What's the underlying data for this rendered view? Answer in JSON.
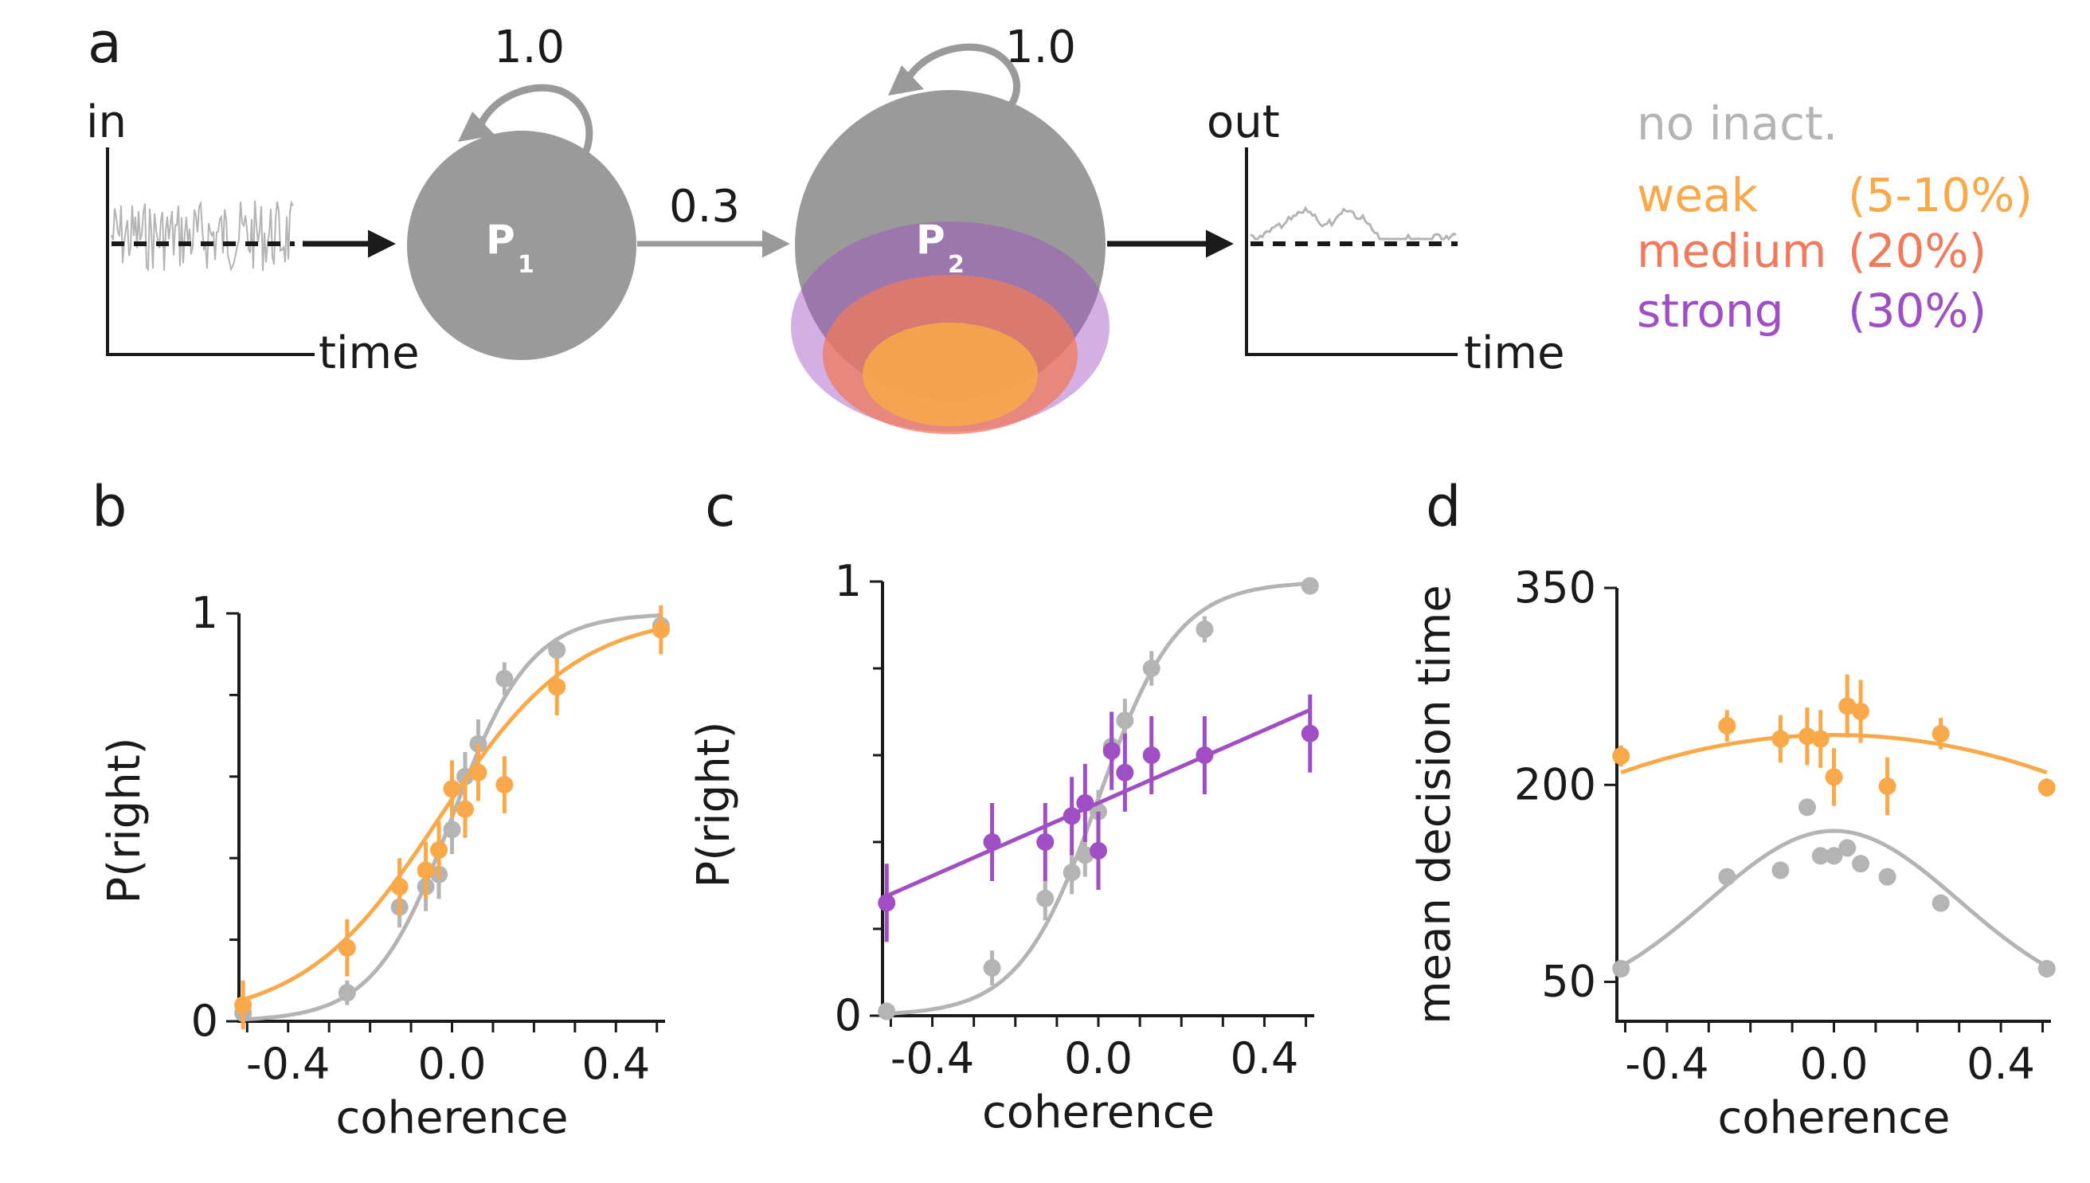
{
  "colors": {
    "none": "#b4b4b4",
    "weak": "#f9a94a",
    "medium": "#ef7a5c",
    "strong": "#a04ec4",
    "node": "#9a9a9a",
    "axis": "#1a1a1a"
  },
  "panel_a": {
    "letter": "a",
    "in_label": "in",
    "out_label": "out",
    "time_label_left": "time",
    "time_label_right": "time",
    "node1": {
      "label": "P",
      "sub": "1",
      "self_weight": "1.0"
    },
    "node2": {
      "label": "P",
      "sub": "2",
      "self_weight": "1.0"
    },
    "connection_weight": "0.3",
    "legend": [
      {
        "name": "no inact.",
        "pct": "",
        "color_key": "none"
      },
      {
        "name": "weak",
        "pct": "(5-10%)",
        "color_key": "weak"
      },
      {
        "name": "medium",
        "pct": "(20%)",
        "color_key": "medium"
      },
      {
        "name": "strong",
        "pct": "(30%)",
        "color_key": "strong"
      }
    ]
  },
  "chart_data": [
    {
      "panel": "b",
      "type": "scatter",
      "xlabel": "coherence",
      "ylabel": "P(right)",
      "xlim": [
        -0.52,
        0.52
      ],
      "ylim": [
        0,
        1
      ],
      "xticks": [
        -0.4,
        0.0,
        0.4
      ],
      "xtick_labels": [
        "-0.4",
        "0.0",
        "0.4"
      ],
      "yticks": [
        0,
        1
      ],
      "ytick_labels": [
        "0",
        "1"
      ],
      "minor_yticks": [
        0.2,
        0.4,
        0.6,
        0.8
      ],
      "series": [
        {
          "name": "no inact.",
          "color_key": "none",
          "fit": {
            "kind": "logistic",
            "k": 10.5,
            "x0": 0.0,
            "lo": 0.0,
            "hi": 1.0
          },
          "points": [
            {
              "x": -0.51,
              "y": 0.02,
              "err": 0.02
            },
            {
              "x": -0.256,
              "y": 0.07,
              "err": 0.03
            },
            {
              "x": -0.128,
              "y": 0.28,
              "err": 0.05
            },
            {
              "x": -0.064,
              "y": 0.33,
              "err": 0.06
            },
            {
              "x": -0.032,
              "y": 0.36,
              "err": 0.06
            },
            {
              "x": 0.0,
              "y": 0.47,
              "err": 0.06
            },
            {
              "x": 0.032,
              "y": 0.6,
              "err": 0.06
            },
            {
              "x": 0.064,
              "y": 0.68,
              "err": 0.06
            },
            {
              "x": 0.128,
              "y": 0.84,
              "err": 0.04
            },
            {
              "x": 0.256,
              "y": 0.91,
              "err": 0.03
            },
            {
              "x": 0.51,
              "y": 0.97,
              "err": 0.02
            }
          ]
        },
        {
          "name": "weak",
          "color_key": "weak",
          "fit": {
            "kind": "logistic",
            "k": 6.0,
            "x0": -0.03,
            "lo": 0.0,
            "hi": 1.0
          },
          "points": [
            {
              "x": -0.51,
              "y": 0.04,
              "err": 0.06
            },
            {
              "x": -0.256,
              "y": 0.18,
              "err": 0.07
            },
            {
              "x": -0.128,
              "y": 0.33,
              "err": 0.07
            },
            {
              "x": -0.064,
              "y": 0.37,
              "err": 0.07
            },
            {
              "x": -0.032,
              "y": 0.42,
              "err": 0.07
            },
            {
              "x": 0.0,
              "y": 0.57,
              "err": 0.07
            },
            {
              "x": 0.032,
              "y": 0.52,
              "err": 0.07
            },
            {
              "x": 0.064,
              "y": 0.61,
              "err": 0.07
            },
            {
              "x": 0.128,
              "y": 0.58,
              "err": 0.07
            },
            {
              "x": 0.256,
              "y": 0.82,
              "err": 0.07
            },
            {
              "x": 0.51,
              "y": 0.96,
              "err": 0.06
            }
          ]
        }
      ]
    },
    {
      "panel": "c",
      "type": "scatter",
      "xlabel": "coherence",
      "ylabel": "P(right)",
      "xlim": [
        -0.52,
        0.52
      ],
      "ylim": [
        0,
        1
      ],
      "xticks": [
        -0.4,
        0.0,
        0.4
      ],
      "xtick_labels": [
        "-0.4",
        "0.0",
        "0.4"
      ],
      "yticks": [
        0,
        1
      ],
      "ytick_labels": [
        "0",
        "1"
      ],
      "minor_yticks": [
        0.2,
        0.4,
        0.6,
        0.8
      ],
      "series": [
        {
          "name": "no inact.",
          "color_key": "none",
          "fit": {
            "kind": "logistic",
            "k": 10.5,
            "x0": 0.0,
            "lo": 0.0,
            "hi": 1.0
          },
          "points": [
            {
              "x": -0.51,
              "y": 0.01,
              "err": 0.01
            },
            {
              "x": -0.256,
              "y": 0.11,
              "err": 0.04
            },
            {
              "x": -0.128,
              "y": 0.27,
              "err": 0.05
            },
            {
              "x": -0.064,
              "y": 0.33,
              "err": 0.05
            },
            {
              "x": -0.032,
              "y": 0.37,
              "err": 0.05
            },
            {
              "x": 0.0,
              "y": 0.47,
              "err": 0.05
            },
            {
              "x": 0.032,
              "y": 0.62,
              "err": 0.05
            },
            {
              "x": 0.064,
              "y": 0.68,
              "err": 0.05
            },
            {
              "x": 0.128,
              "y": 0.8,
              "err": 0.04
            },
            {
              "x": 0.256,
              "y": 0.89,
              "err": 0.03
            },
            {
              "x": 0.51,
              "y": 0.99,
              "err": 0.01
            }
          ]
        },
        {
          "name": "strong",
          "color_key": "strong",
          "fit": {
            "kind": "linear",
            "slope": 0.42,
            "intercept": 0.49
          },
          "points": [
            {
              "x": -0.51,
              "y": 0.26,
              "err": 0.09
            },
            {
              "x": -0.256,
              "y": 0.4,
              "err": 0.09
            },
            {
              "x": -0.128,
              "y": 0.4,
              "err": 0.09
            },
            {
              "x": -0.064,
              "y": 0.46,
              "err": 0.09
            },
            {
              "x": -0.032,
              "y": 0.49,
              "err": 0.09
            },
            {
              "x": 0.0,
              "y": 0.38,
              "err": 0.09
            },
            {
              "x": 0.032,
              "y": 0.61,
              "err": 0.09
            },
            {
              "x": 0.064,
              "y": 0.56,
              "err": 0.09
            },
            {
              "x": 0.128,
              "y": 0.6,
              "err": 0.09
            },
            {
              "x": 0.256,
              "y": 0.6,
              "err": 0.09
            },
            {
              "x": 0.51,
              "y": 0.65,
              "err": 0.09
            }
          ]
        }
      ]
    },
    {
      "panel": "d",
      "type": "scatter",
      "xlabel": "coherence",
      "ylabel": "mean decision time",
      "xlim": [
        -0.52,
        0.52
      ],
      "ylim": [
        20,
        350
      ],
      "xticks": [
        -0.4,
        0.0,
        0.4
      ],
      "xtick_labels": [
        "-0.4",
        "0.0",
        "0.4"
      ],
      "yticks": [
        50,
        200,
        350
      ],
      "ytick_labels": [
        "50",
        "200",
        "350"
      ],
      "minor_yticks": [],
      "series": [
        {
          "name": "weak",
          "color_key": "weak",
          "fit": {
            "kind": "quadratic",
            "a": -110,
            "c": 238
          },
          "points": [
            {
              "x": -0.51,
              "y": 222,
              "err": 8
            },
            {
              "x": -0.256,
              "y": 245,
              "err": 12
            },
            {
              "x": -0.128,
              "y": 235,
              "err": 18
            },
            {
              "x": -0.064,
              "y": 237,
              "err": 22
            },
            {
              "x": -0.032,
              "y": 235,
              "err": 22
            },
            {
              "x": 0.0,
              "y": 206,
              "err": 22
            },
            {
              "x": 0.032,
              "y": 260,
              "err": 24
            },
            {
              "x": 0.064,
              "y": 256,
              "err": 24
            },
            {
              "x": 0.128,
              "y": 199,
              "err": 22
            },
            {
              "x": 0.256,
              "y": 239,
              "err": 12
            },
            {
              "x": 0.51,
              "y": 198,
              "err": 7
            }
          ]
        },
        {
          "name": "no inact.",
          "color_key": "none",
          "fit": {
            "kind": "gaussian",
            "base": 30,
            "amp": 135,
            "sigma": 0.3
          },
          "points": [
            {
              "x": -0.51,
              "y": 60,
              "err": 3
            },
            {
              "x": -0.256,
              "y": 130,
              "err": 3
            },
            {
              "x": -0.128,
              "y": 135,
              "err": 3
            },
            {
              "x": -0.064,
              "y": 183,
              "err": 3
            },
            {
              "x": -0.032,
              "y": 146,
              "err": 3
            },
            {
              "x": 0.0,
              "y": 146,
              "err": 3
            },
            {
              "x": 0.032,
              "y": 152,
              "err": 3
            },
            {
              "x": 0.064,
              "y": 140,
              "err": 3
            },
            {
              "x": 0.128,
              "y": 130,
              "err": 3
            },
            {
              "x": 0.256,
              "y": 110,
              "err": 3
            },
            {
              "x": 0.51,
              "y": 60,
              "err": 3
            }
          ]
        }
      ]
    }
  ]
}
